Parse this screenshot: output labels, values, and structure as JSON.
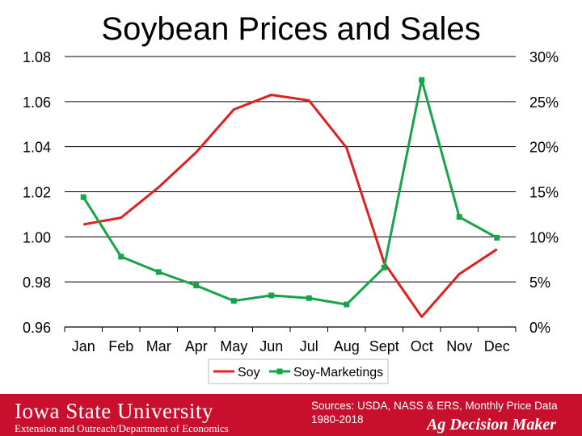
{
  "chart_data": {
    "type": "line",
    "title": "Soybean Prices and Sales",
    "categories": [
      "Jan",
      "Feb",
      "Mar",
      "Apr",
      "May",
      "Jun",
      "Jul",
      "Aug",
      "Sept",
      "Oct",
      "Nov",
      "Dec"
    ],
    "left_axis": {
      "min": 0.96,
      "max": 1.08,
      "ticks": [
        "0.96",
        "0.98",
        "1.00",
        "1.02",
        "1.04",
        "1.06",
        "1.08"
      ]
    },
    "right_axis": {
      "min": 0,
      "max": 30,
      "ticks": [
        "0%",
        "5%",
        "10%",
        "15%",
        "20%",
        "25%",
        "30%"
      ]
    },
    "series": [
      {
        "name": "Soy",
        "axis": "left",
        "color": "#e02020",
        "values": [
          1.0055,
          1.0085,
          1.022,
          1.0375,
          1.0565,
          1.063,
          1.0605,
          1.0395,
          0.9885,
          0.9645,
          0.9835,
          0.9945
        ]
      },
      {
        "name": "Soy-Marketings",
        "axis": "right",
        "color": "#16a34a",
        "marker": "square",
        "values": [
          14.4,
          7.8,
          6.1,
          4.6,
          2.9,
          3.5,
          3.2,
          2.5,
          6.6,
          27.4,
          12.2,
          9.9
        ]
      }
    ],
    "legend_position": "bottom"
  },
  "footer": {
    "university": "Iowa State University",
    "department": "Extension and Outreach/Department of Economics",
    "sources": "Sources: USDA, NASS & ERS, Monthly Price Data 1980-2018",
    "brand": "Ag Decision Maker"
  }
}
